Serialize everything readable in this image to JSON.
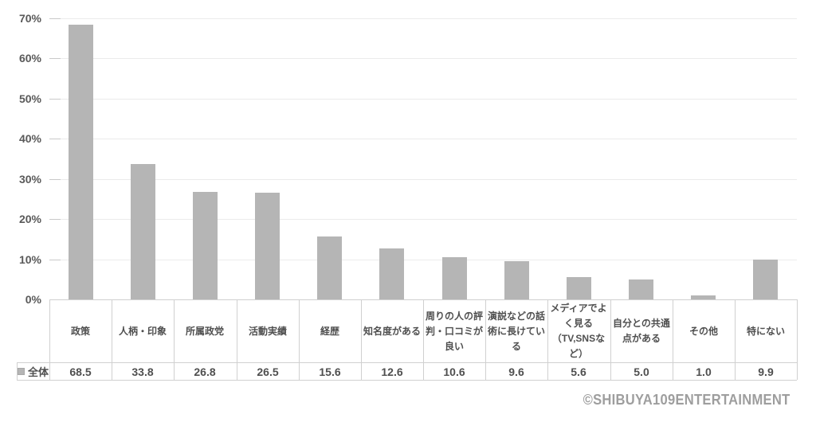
{
  "footer": {
    "copyright": "©SHIBUYA109ENTERTAINMENT"
  },
  "legend": {
    "label": "全体"
  },
  "y_axis": {
    "tick_labels": [
      "0%",
      "10%",
      "20%",
      "30%",
      "40%",
      "50%",
      "60%",
      "70%"
    ]
  },
  "chart_data": {
    "type": "bar",
    "title": "",
    "categories": [
      "政策",
      "人柄・印象",
      "所属政党",
      "活動実績",
      "経歴",
      "知名度がある",
      "周りの人の評\n判・口コミが\n良い",
      "演説などの話\n術に長けてい\nる",
      "メディアでよ\nく見る\n（TV,SNSな\nど）",
      "自分との共通\n点がある",
      "その他",
      "特にない"
    ],
    "series": [
      {
        "name": "全体",
        "values": [
          68.5,
          33.8,
          26.8,
          26.5,
          15.6,
          12.6,
          10.6,
          9.6,
          5.6,
          5.0,
          1.0,
          9.9
        ]
      }
    ],
    "value_labels": [
      "68.5",
      "33.8",
      "26.8",
      "26.5",
      "15.6",
      "12.6",
      "10.6",
      "9.6",
      "5.6",
      "5.0",
      "1.0",
      "9.9"
    ],
    "xlabel": "",
    "ylabel": "",
    "ylim": [
      0,
      70
    ],
    "ytick_step": 10,
    "grid": true,
    "legend_position": "data-table-left",
    "data_table_shown": true
  },
  "colors": {
    "bar": "#b5b5b5",
    "gridline": "#ebebeb",
    "tick": "#c9c9c9",
    "table_border": "#d0d0d0",
    "text": "#4f4f4f",
    "axis_text": "#595959",
    "copyright": "#9e9e9e"
  }
}
